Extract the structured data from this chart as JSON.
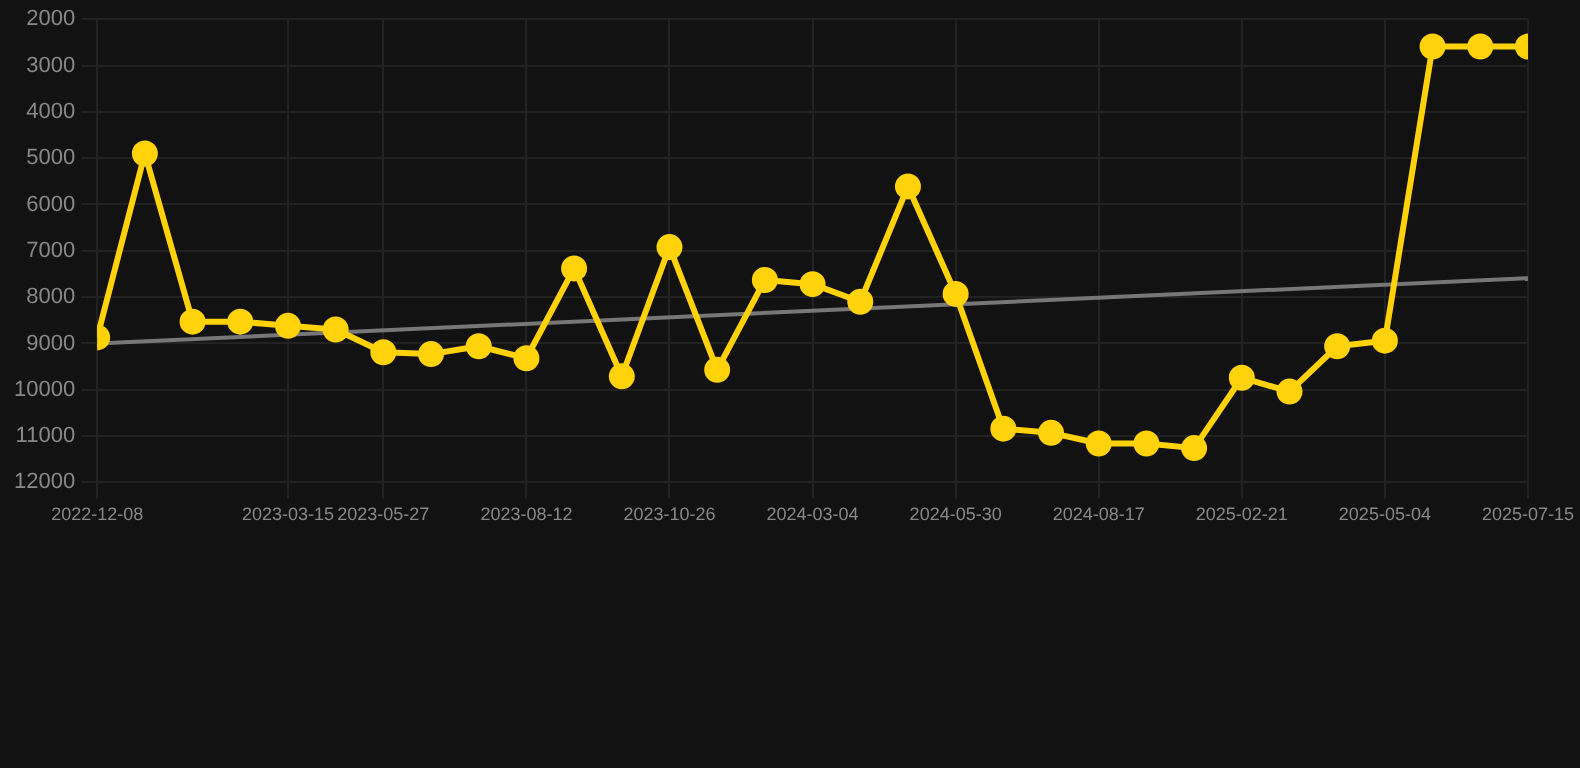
{
  "chart_data": {
    "type": "line",
    "categories": [
      "2022-12-08",
      null,
      null,
      null,
      "2023-03-15",
      null,
      "2023-05-27",
      null,
      null,
      "2023-08-12",
      null,
      null,
      "2023-10-26",
      null,
      null,
      "2024-03-04",
      null,
      null,
      "2024-05-30",
      null,
      null,
      "2024-08-17",
      null,
      null,
      "2025-02-21",
      null,
      null,
      "2025-05-04",
      null,
      null,
      "2025-07-15"
    ],
    "series": [
      {
        "color": "#ffd20a",
        "marker": "circle",
        "values": [
          8870,
          4900,
          8530,
          8530,
          8620,
          8700,
          9190,
          9230,
          9060,
          9320,
          7380,
          9710,
          6920,
          9570,
          7630,
          7720,
          8100,
          5610,
          7930,
          10840,
          10930,
          11160,
          11160,
          11260,
          9740,
          10040,
          9060,
          8940,
          2590,
          2590,
          2590
        ]
      },
      {
        "type": "line",
        "color": "#777777",
        "marker": "none",
        "values": [
          9000,
          null,
          null,
          null,
          null,
          null,
          null,
          null,
          null,
          null,
          null,
          null,
          null,
          null,
          null,
          null,
          null,
          null,
          null,
          null,
          null,
          null,
          null,
          null,
          null,
          null,
          null,
          null,
          null,
          null,
          7590
        ]
      }
    ],
    "ylim": [
      12000,
      2000
    ],
    "yticks": [
      2000,
      3000,
      4000,
      5000,
      6000,
      7000,
      8000,
      9000,
      10000,
      11000,
      12000
    ],
    "grid": true,
    "legend": false
  }
}
